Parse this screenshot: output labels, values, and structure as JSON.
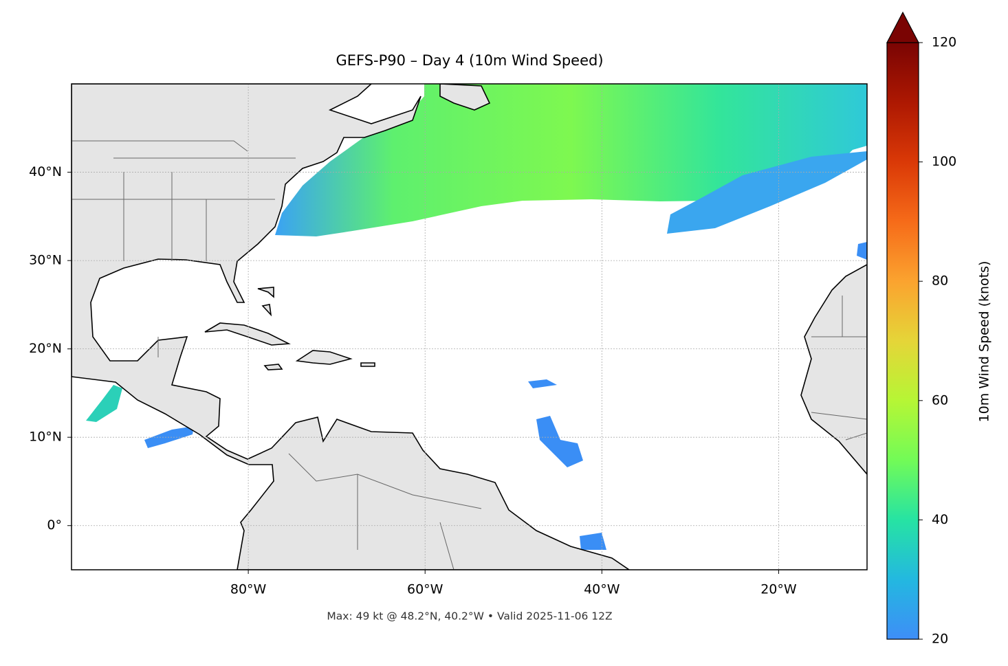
{
  "chart_data": {
    "type": "map",
    "title": "GEFS-P90 – Day 4 (10m Wind Speed)",
    "annotation": "Max: 49 kt @ 48.2°N, 40.2°W • Valid 2025-11-06 12Z",
    "xlim": [
      -100,
      -10
    ],
    "ylim": [
      -5,
      50
    ],
    "xticks": [
      {
        "value": -80,
        "label": "80°W"
      },
      {
        "value": -60,
        "label": "60°W"
      },
      {
        "value": -40,
        "label": "40°W"
      },
      {
        "value": -20,
        "label": "20°W"
      }
    ],
    "yticks": [
      {
        "value": 0,
        "label": "0°"
      },
      {
        "value": 10,
        "label": "10°N"
      },
      {
        "value": 20,
        "label": "20°N"
      },
      {
        "value": 30,
        "label": "30°N"
      },
      {
        "value": 40,
        "label": "40°N"
      }
    ],
    "grid": true,
    "colorbar": {
      "label": "10m Wind Speed (knots)",
      "lim": [
        20,
        120
      ],
      "ticks": [
        20,
        40,
        60,
        80,
        100,
        120
      ],
      "colormap": "turbo",
      "extend": "max"
    }
  }
}
